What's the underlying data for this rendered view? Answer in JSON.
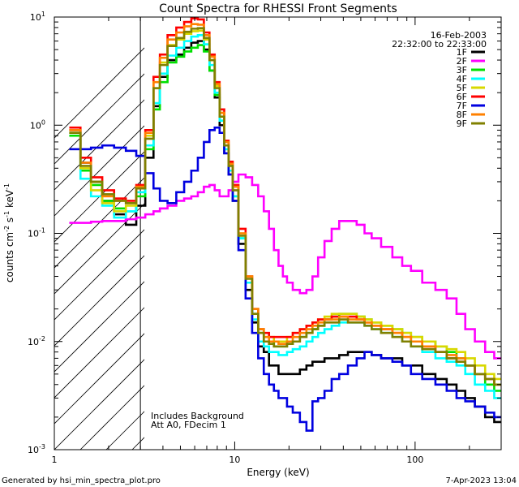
{
  "chart_data": {
    "type": "line",
    "title": "Count Spectra for RHESSI Front Segments",
    "xlabel": "Energy (keV)",
    "ylabel": {
      "base": "counts cm",
      "e1": "-2",
      "mid": " s",
      "e2": "-1",
      "end": " keV",
      "e3": "-1"
    },
    "xscale": "log",
    "yscale": "log",
    "xlim": [
      1,
      300
    ],
    "ylim": [
      0.001,
      10
    ],
    "x_ticks": [
      {
        "value": 1,
        "label": "1"
      },
      {
        "value": 10,
        "label": "10"
      },
      {
        "value": 100,
        "label": "100"
      }
    ],
    "y_ticks": [
      {
        "value": 0.001,
        "mant": "10",
        "exp": "-3"
      },
      {
        "value": 0.01,
        "mant": "10",
        "exp": "-2"
      },
      {
        "value": 0.1,
        "mant": "10",
        "exp": "-1"
      },
      {
        "value": 1,
        "mant": "10",
        "exp": "0"
      },
      {
        "value": 10,
        "mant": "10",
        "exp": "1"
      }
    ],
    "date": "16-Feb-2003",
    "time_range": "22:32:00 to 22:33:00",
    "hatched_region": [
      1,
      3
    ],
    "annotations": [
      "Includes Background",
      "Att A0, FDecim 1"
    ],
    "footer_left": "Generated by hsi_min_spectra_plot.pro",
    "footer_right": "7-Apr-2023 13:04",
    "energy_bins_keV": [
      1.3,
      1.5,
      1.7,
      2.0,
      2.3,
      2.7,
      3.0,
      3.4,
      3.7,
      4.0,
      4.5,
      5.0,
      5.5,
      6.0,
      6.5,
      7.0,
      7.5,
      8.0,
      8.5,
      9.0,
      9.5,
      10,
      11,
      12,
      13,
      14,
      15,
      16,
      17,
      18,
      19,
      20,
      22,
      24,
      26,
      28,
      30,
      33,
      36,
      40,
      45,
      50,
      55,
      60,
      70,
      80,
      90,
      100,
      120,
      140,
      160,
      180,
      200,
      230,
      260,
      290
    ],
    "series": [
      {
        "name": "1F",
        "color": "#000000",
        "values": [
          0.9,
          0.45,
          0.3,
          0.2,
          0.15,
          0.12,
          0.18,
          0.5,
          1.5,
          2.8,
          4.0,
          4.5,
          5.2,
          5.8,
          6.0,
          5.0,
          3.2,
          1.8,
          1.0,
          0.55,
          0.35,
          0.2,
          0.08,
          0.03,
          0.015,
          0.009,
          0.008,
          0.006,
          0.006,
          0.005,
          0.005,
          0.005,
          0.005,
          0.0055,
          0.006,
          0.0065,
          0.0065,
          0.007,
          0.007,
          0.0075,
          0.008,
          0.008,
          0.008,
          0.0075,
          0.007,
          0.007,
          0.006,
          0.006,
          0.005,
          0.0045,
          0.004,
          0.0035,
          0.003,
          0.0025,
          0.002,
          0.0018
        ]
      },
      {
        "name": "2F",
        "color": "#ff00ff",
        "values": [
          0.125,
          0.125,
          0.128,
          0.13,
          0.13,
          0.135,
          0.14,
          0.15,
          0.16,
          0.17,
          0.18,
          0.2,
          0.21,
          0.22,
          0.24,
          0.27,
          0.28,
          0.25,
          0.22,
          0.22,
          0.25,
          0.3,
          0.35,
          0.33,
          0.28,
          0.22,
          0.16,
          0.11,
          0.07,
          0.05,
          0.04,
          0.035,
          0.03,
          0.028,
          0.03,
          0.04,
          0.06,
          0.085,
          0.11,
          0.13,
          0.13,
          0.12,
          0.1,
          0.09,
          0.075,
          0.06,
          0.05,
          0.045,
          0.035,
          0.03,
          0.025,
          0.018,
          0.013,
          0.01,
          0.008,
          0.007
        ]
      },
      {
        "name": "3F",
        "color": "#00e000",
        "values": [
          0.8,
          0.38,
          0.28,
          0.2,
          0.17,
          0.16,
          0.22,
          0.6,
          1.4,
          2.5,
          3.8,
          4.3,
          4.8,
          5.2,
          5.5,
          4.8,
          3.2,
          1.9,
          1.1,
          0.6,
          0.38,
          0.22,
          0.09,
          0.035,
          0.018,
          0.012,
          0.01,
          0.01,
          0.009,
          0.009,
          0.009,
          0.0095,
          0.01,
          0.011,
          0.012,
          0.013,
          0.014,
          0.016,
          0.017,
          0.018,
          0.018,
          0.017,
          0.016,
          0.015,
          0.014,
          0.013,
          0.012,
          0.011,
          0.01,
          0.009,
          0.008,
          0.007,
          0.006,
          0.005,
          0.004,
          0.0035
        ]
      },
      {
        "name": "4F",
        "color": "#00ffff",
        "values": [
          0.85,
          0.32,
          0.22,
          0.18,
          0.14,
          0.16,
          0.24,
          0.65,
          1.6,
          3.0,
          4.4,
          5.2,
          6.0,
          6.6,
          6.8,
          5.6,
          3.6,
          2.0,
          1.1,
          0.6,
          0.38,
          0.22,
          0.09,
          0.035,
          0.016,
          0.01,
          0.009,
          0.008,
          0.008,
          0.0075,
          0.0075,
          0.008,
          0.0085,
          0.009,
          0.01,
          0.011,
          0.012,
          0.013,
          0.014,
          0.015,
          0.015,
          0.015,
          0.014,
          0.013,
          0.012,
          0.011,
          0.01,
          0.009,
          0.008,
          0.007,
          0.0065,
          0.006,
          0.005,
          0.004,
          0.0035,
          0.003
        ]
      },
      {
        "name": "5F",
        "color": "#d8d800",
        "values": [
          0.85,
          0.4,
          0.25,
          0.19,
          0.16,
          0.18,
          0.26,
          0.8,
          2.2,
          3.8,
          5.5,
          6.2,
          7.0,
          7.4,
          7.5,
          6.2,
          4.0,
          2.3,
          1.3,
          0.7,
          0.45,
          0.28,
          0.1,
          0.04,
          0.02,
          0.013,
          0.011,
          0.011,
          0.01,
          0.01,
          0.01,
          0.011,
          0.012,
          0.013,
          0.014,
          0.015,
          0.016,
          0.017,
          0.018,
          0.018,
          0.018,
          0.017,
          0.016,
          0.015,
          0.014,
          0.013,
          0.012,
          0.011,
          0.01,
          0.009,
          0.0085,
          0.008,
          0.007,
          0.006,
          0.005,
          0.0045
        ]
      },
      {
        "name": "6F",
        "color": "#ff0000",
        "values": [
          0.95,
          0.5,
          0.33,
          0.25,
          0.21,
          0.2,
          0.28,
          0.9,
          2.8,
          4.5,
          6.8,
          8.0,
          9.0,
          9.7,
          9.5,
          7.2,
          4.5,
          2.5,
          1.4,
          0.72,
          0.46,
          0.28,
          0.11,
          0.04,
          0.02,
          0.013,
          0.012,
          0.011,
          0.011,
          0.011,
          0.011,
          0.011,
          0.012,
          0.013,
          0.014,
          0.015,
          0.016,
          0.016,
          0.017,
          0.017,
          0.017,
          0.016,
          0.015,
          0.014,
          0.013,
          0.012,
          0.011,
          0.01,
          0.009,
          0.008,
          0.007,
          0.0065,
          0.006,
          0.005,
          0.0045,
          0.004
        ]
      },
      {
        "name": "7F",
        "color": "#0000e0",
        "values": [
          0.6,
          0.6,
          0.62,
          0.65,
          0.62,
          0.58,
          0.52,
          0.36,
          0.26,
          0.2,
          0.19,
          0.24,
          0.3,
          0.38,
          0.5,
          0.7,
          0.9,
          0.95,
          0.85,
          0.55,
          0.35,
          0.2,
          0.07,
          0.025,
          0.012,
          0.007,
          0.005,
          0.004,
          0.0035,
          0.003,
          0.003,
          0.0025,
          0.0022,
          0.0018,
          0.0015,
          0.0028,
          0.003,
          0.0035,
          0.0045,
          0.005,
          0.006,
          0.007,
          0.008,
          0.0075,
          0.007,
          0.0065,
          0.006,
          0.005,
          0.0045,
          0.004,
          0.0035,
          0.003,
          0.0028,
          0.0025,
          0.0022,
          0.002
        ]
      },
      {
        "name": "8F",
        "color": "#ff8000",
        "values": [
          0.9,
          0.45,
          0.3,
          0.22,
          0.2,
          0.19,
          0.27,
          0.85,
          2.5,
          4.2,
          6.2,
          7.2,
          8.2,
          8.6,
          8.5,
          6.8,
          4.3,
          2.4,
          1.3,
          0.7,
          0.44,
          0.27,
          0.1,
          0.04,
          0.02,
          0.013,
          0.011,
          0.01,
          0.01,
          0.0095,
          0.0095,
          0.01,
          0.011,
          0.012,
          0.013,
          0.014,
          0.015,
          0.016,
          0.016,
          0.017,
          0.016,
          0.016,
          0.015,
          0.014,
          0.013,
          0.012,
          0.011,
          0.01,
          0.009,
          0.008,
          0.0075,
          0.007,
          0.006,
          0.005,
          0.0045,
          0.004
        ]
      },
      {
        "name": "9F",
        "color": "#808000",
        "values": [
          0.85,
          0.42,
          0.3,
          0.23,
          0.2,
          0.19,
          0.26,
          0.75,
          2.2,
          3.6,
          5.4,
          6.4,
          7.3,
          7.8,
          7.9,
          6.4,
          4.0,
          2.2,
          1.2,
          0.65,
          0.42,
          0.25,
          0.095,
          0.038,
          0.018,
          0.012,
          0.01,
          0.0095,
          0.009,
          0.009,
          0.009,
          0.0095,
          0.01,
          0.011,
          0.012,
          0.013,
          0.014,
          0.015,
          0.015,
          0.016,
          0.015,
          0.015,
          0.014,
          0.013,
          0.012,
          0.011,
          0.01,
          0.009,
          0.0085,
          0.008,
          0.007,
          0.0065,
          0.006,
          0.005,
          0.0045,
          0.004
        ]
      }
    ]
  }
}
